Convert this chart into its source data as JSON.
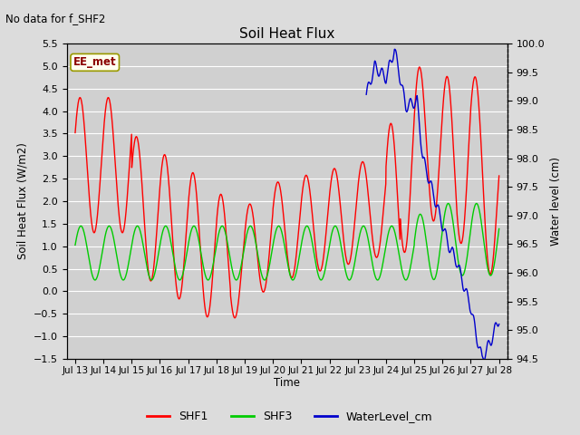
{
  "title": "Soil Heat Flux",
  "subtitle": "No data for f_SHF2",
  "ylabel_left": "Soil Heat Flux (W/m2)",
  "ylabel_right": "Water level (cm)",
  "xlabel": "Time",
  "ylim_left": [
    -1.5,
    5.5
  ],
  "ylim_right": [
    94.5,
    100.0
  ],
  "bg_color": "#dcdcdc",
  "plot_bg_color": "#d0d0d0",
  "grid_color": "#ffffff",
  "annotation_label": "EE_met",
  "annotation_box_color": "#fffff0",
  "annotation_border_color": "#999900",
  "annotation_text_color": "#8B0000",
  "legend_entries": [
    "SHF1",
    "SHF3",
    "WaterLevel_cm"
  ],
  "legend_colors": [
    "#ff0000",
    "#00cc00",
    "#0000cc"
  ],
  "shf1_color": "#ff0000",
  "shf3_color": "#00cc00",
  "water_color": "#0000cc",
  "tick_labels": [
    "Jul 13",
    "Jul 14",
    "Jul 15",
    "Jul 16",
    "Jul 17",
    "Jul 18",
    "Jul 19",
    "Jul 20",
    "Jul 21",
    "Jul 22",
    "Jul 23",
    "Jul 24",
    "Jul 25",
    "Jul 26",
    "Jul 27",
    "Jul 28"
  ],
  "right_yticks": [
    94.5,
    95.0,
    95.5,
    96.0,
    96.5,
    97.0,
    97.5,
    98.0,
    98.5,
    99.0,
    99.5,
    100.0
  ],
  "left_yticks": [
    -1.5,
    -1.0,
    -0.5,
    0.0,
    0.5,
    1.0,
    1.5,
    2.0,
    2.5,
    3.0,
    3.5,
    4.0,
    4.5,
    5.0,
    5.5
  ]
}
